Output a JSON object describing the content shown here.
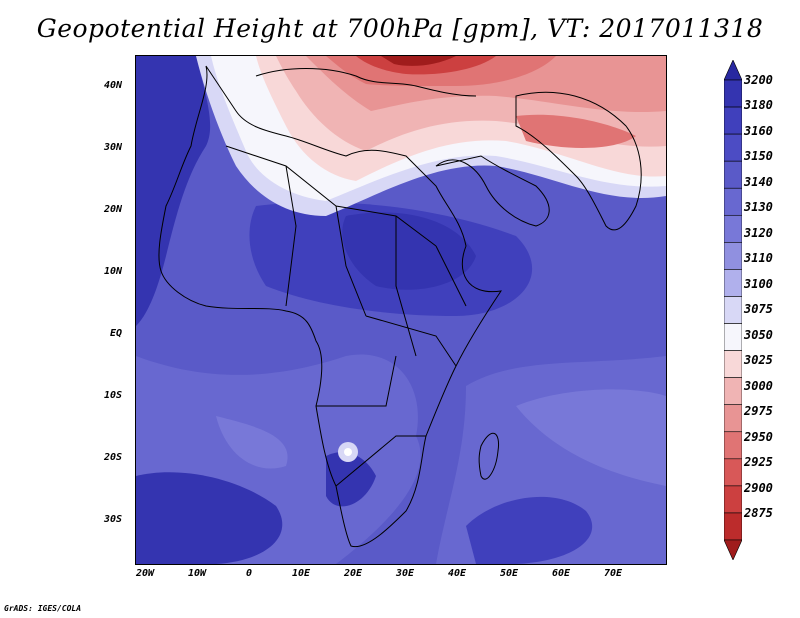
{
  "title": "Geopotential Height at 700hPa [gpm], VT: 2017011318",
  "credit": "GrADS: IGES/COLA",
  "lat_labels": [
    "40N",
    "30N",
    "20N",
    "10N",
    "EQ",
    "10S",
    "20S",
    "30S"
  ],
  "lon_labels": [
    "20W",
    "10W",
    "0",
    "10E",
    "20E",
    "30E",
    "40E",
    "50E",
    "60E",
    "70E"
  ],
  "colorbar": {
    "levels": [
      "3200",
      "3180",
      "3160",
      "3150",
      "3140",
      "3130",
      "3120",
      "3110",
      "3100",
      "3075",
      "3050",
      "3025",
      "3000",
      "2975",
      "2950",
      "2925",
      "2900",
      "2875"
    ],
    "colors": [
      "#2828a0",
      "#3434b0",
      "#4040bc",
      "#4c4cc4",
      "#5a5ac8",
      "#6868d0",
      "#7878d8",
      "#9090e0",
      "#b0b0ec",
      "#d8d8f6",
      "#f6f6fc",
      "#f8d8d8",
      "#f0b4b4",
      "#e89494",
      "#e07474",
      "#d85858",
      "#cc4040",
      "#bc2c2c",
      "#a01c1c"
    ]
  },
  "map": {
    "domain": "Africa, Middle East and western Indian Ocean",
    "lon_range": [
      -22,
      80
    ],
    "lat_range": [
      -37,
      45
    ],
    "high_color": "#2a2a9a",
    "low_color": "#a81e1e"
  }
}
